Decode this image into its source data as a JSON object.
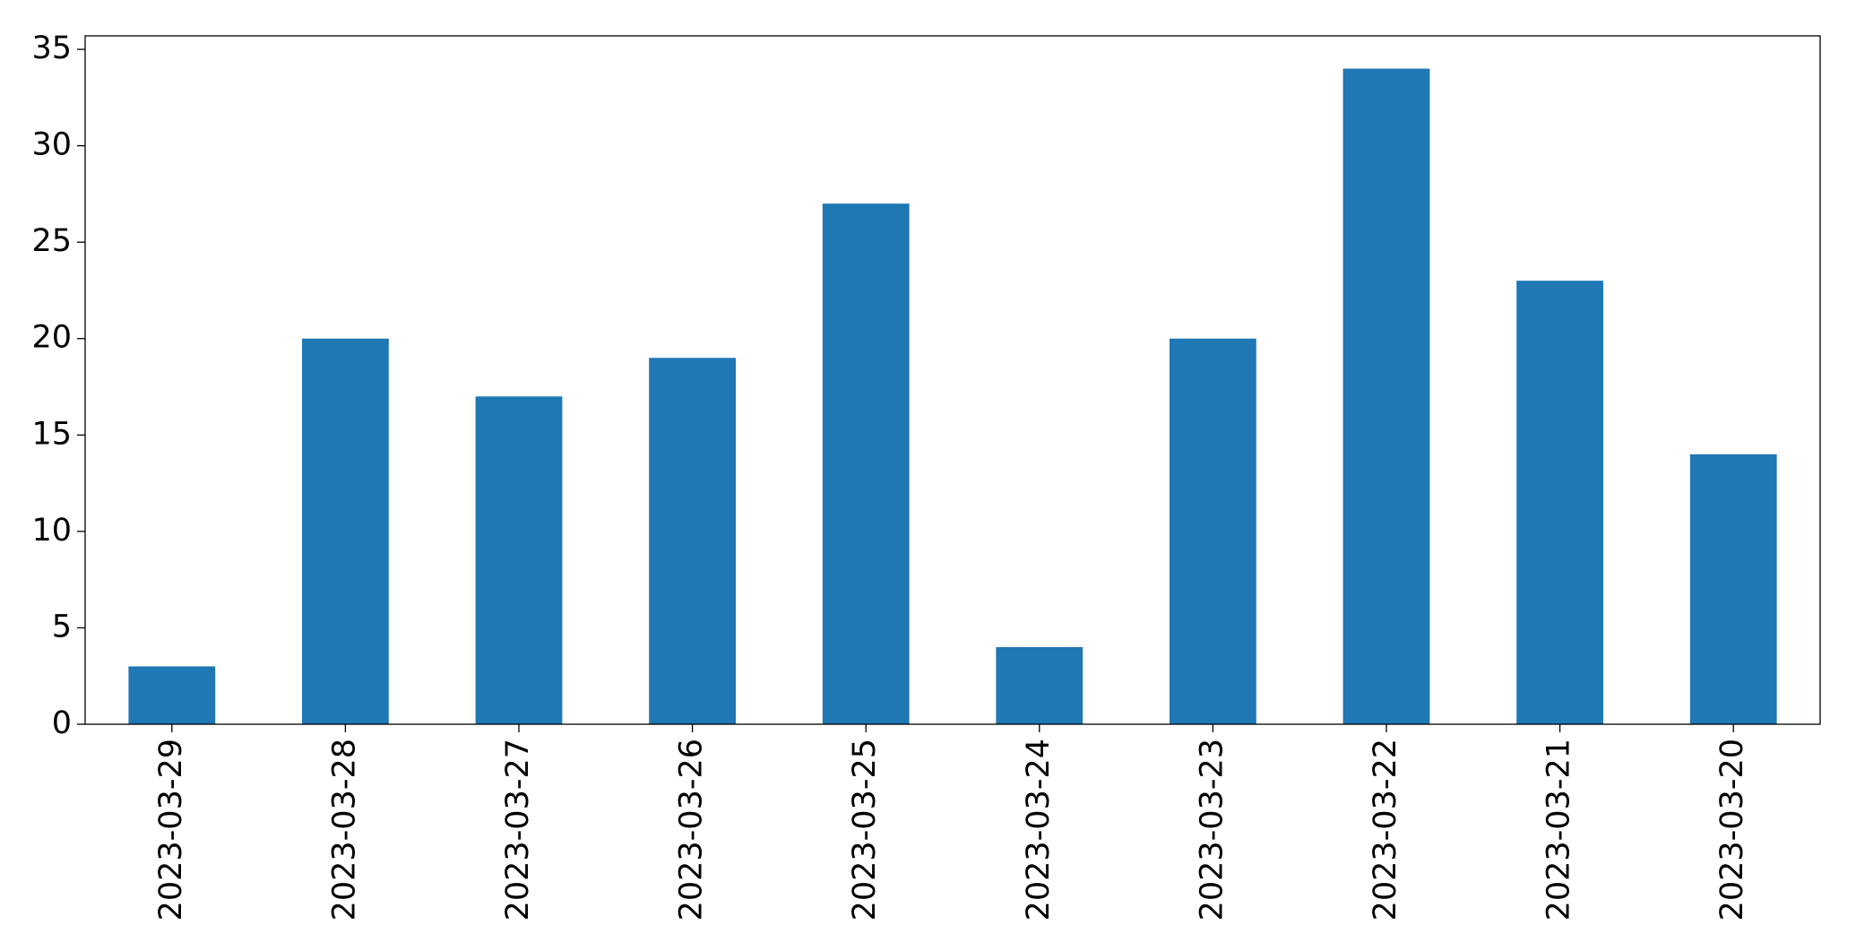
{
  "chart_data": {
    "type": "bar",
    "categories": [
      "2023-03-29",
      "2023-03-28",
      "2023-03-27",
      "2023-03-26",
      "2023-03-25",
      "2023-03-24",
      "2023-03-23",
      "2023-03-22",
      "2023-03-21",
      "2023-03-20"
    ],
    "values": [
      3,
      20,
      17,
      19,
      27,
      4,
      20,
      34,
      23,
      14
    ],
    "color": "#1f77b4",
    "ylim": [
      0,
      35.7
    ],
    "yticks": [
      0,
      5,
      10,
      15,
      20,
      25,
      30,
      35
    ],
    "grid": false
  }
}
